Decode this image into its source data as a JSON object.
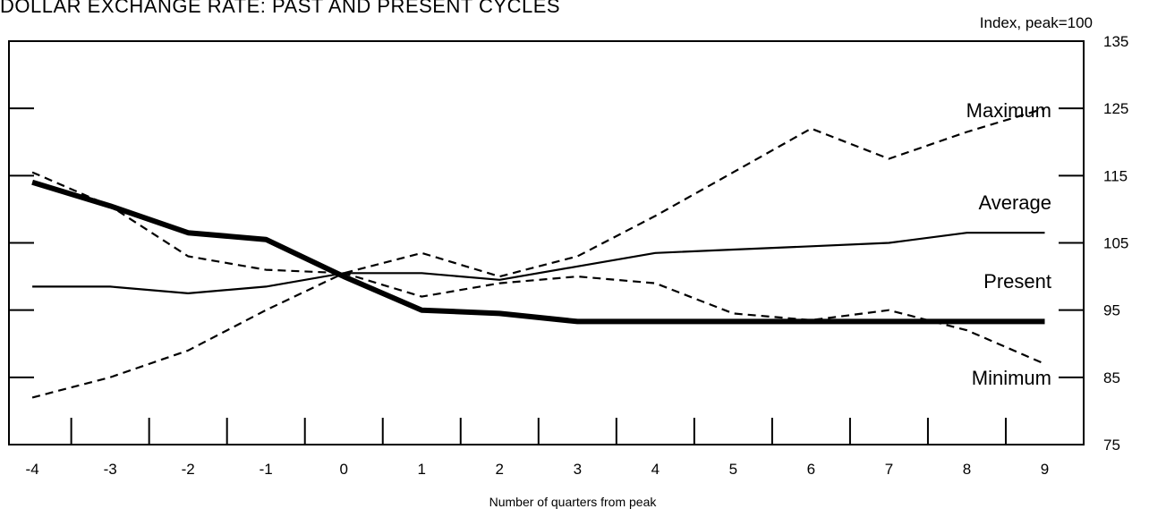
{
  "chart_data": {
    "type": "line",
    "title": "DOLLAR EXCHANGE RATE: PAST AND PRESENT CYCLES",
    "units_label": "Index, peak=100",
    "xlabel": "Number of quarters from peak",
    "ylabel": "",
    "x": [
      -4,
      -3,
      -2,
      -1,
      0,
      1,
      2,
      3,
      4,
      5,
      6,
      7,
      8,
      9
    ],
    "xlim": [
      -4.3,
      9.5
    ],
    "ylim": [
      75,
      135
    ],
    "yticks": [
      75,
      85,
      95,
      105,
      115,
      125,
      135
    ],
    "grid": false,
    "series": [
      {
        "name": "Maximum",
        "style": "dashed",
        "values": [
          115.5,
          110.5,
          103,
          101,
          100.5,
          103.5,
          100,
          103,
          109,
          115.5,
          122,
          117.5,
          121.5,
          125
        ]
      },
      {
        "name": "Average",
        "style": "solid-thin",
        "values": [
          98.5,
          98.5,
          97.5,
          98.5,
          100.5,
          100.5,
          99.5,
          101.5,
          103.5,
          104,
          104.5,
          105,
          106.5,
          106.5
        ]
      },
      {
        "name": "Present",
        "style": "solid-thick",
        "values": [
          114,
          110.5,
          106.5,
          105.5,
          100,
          95,
          94.5,
          93.3,
          93.3,
          93.3,
          93.3,
          93.3,
          93.3,
          93.3
        ]
      },
      {
        "name": "Minimum",
        "style": "dashed",
        "values": [
          82,
          85,
          89,
          95,
          100.5,
          97,
          99,
          100,
          99,
          94.5,
          93.5,
          95,
          92,
          87
        ]
      }
    ]
  }
}
